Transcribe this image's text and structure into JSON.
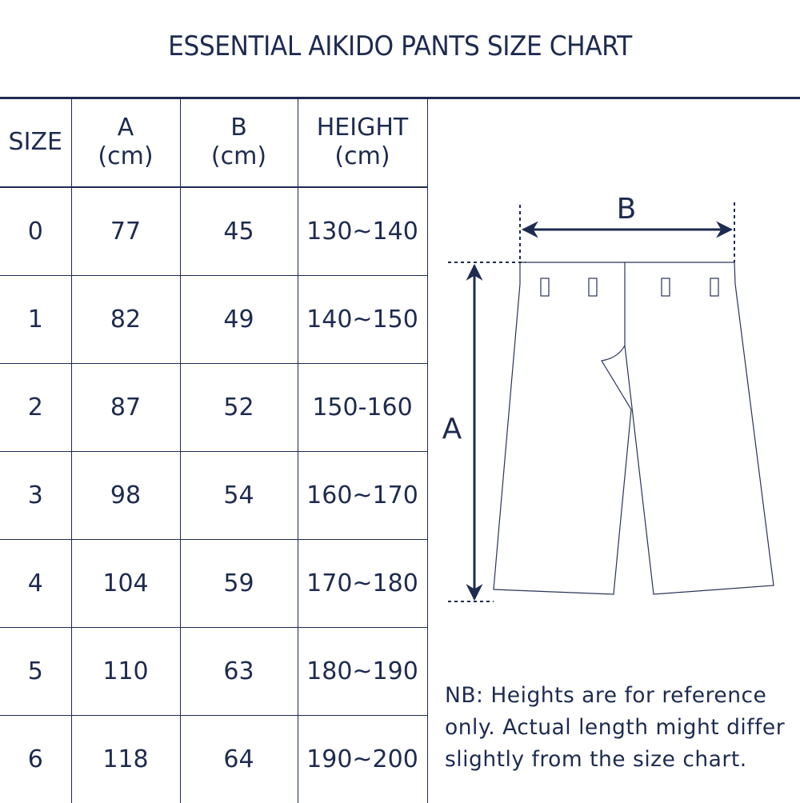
{
  "title": "ESSENTIAL AIKIDO PANTS SIZE CHART",
  "colors": {
    "ink": "#1e2b50"
  },
  "chart_data": {
    "type": "table",
    "title": "ESSENTIAL AIKIDO PANTS SIZE CHART",
    "columns": [
      {
        "line1": "SIZE",
        "line2": ""
      },
      {
        "line1": "A",
        "line2": "(cm)"
      },
      {
        "line1": "B",
        "line2": "(cm)"
      },
      {
        "line1": "HEIGHT",
        "line2": "(cm)"
      }
    ],
    "rows": [
      [
        "0",
        "77",
        "45",
        "130~140"
      ],
      [
        "1",
        "82",
        "49",
        "140~150"
      ],
      [
        "2",
        "87",
        "52",
        "150-160"
      ],
      [
        "3",
        "98",
        "54",
        "160~170"
      ],
      [
        "4",
        "104",
        "59",
        "170~180"
      ],
      [
        "5",
        "110",
        "63",
        "180~190"
      ],
      [
        "6",
        "118",
        "64",
        "190~200"
      ]
    ]
  },
  "diagram": {
    "label_a": "A",
    "label_b": "B"
  },
  "note": "NB: Heights are for reference only. Actual length might differ slightly from the size chart."
}
